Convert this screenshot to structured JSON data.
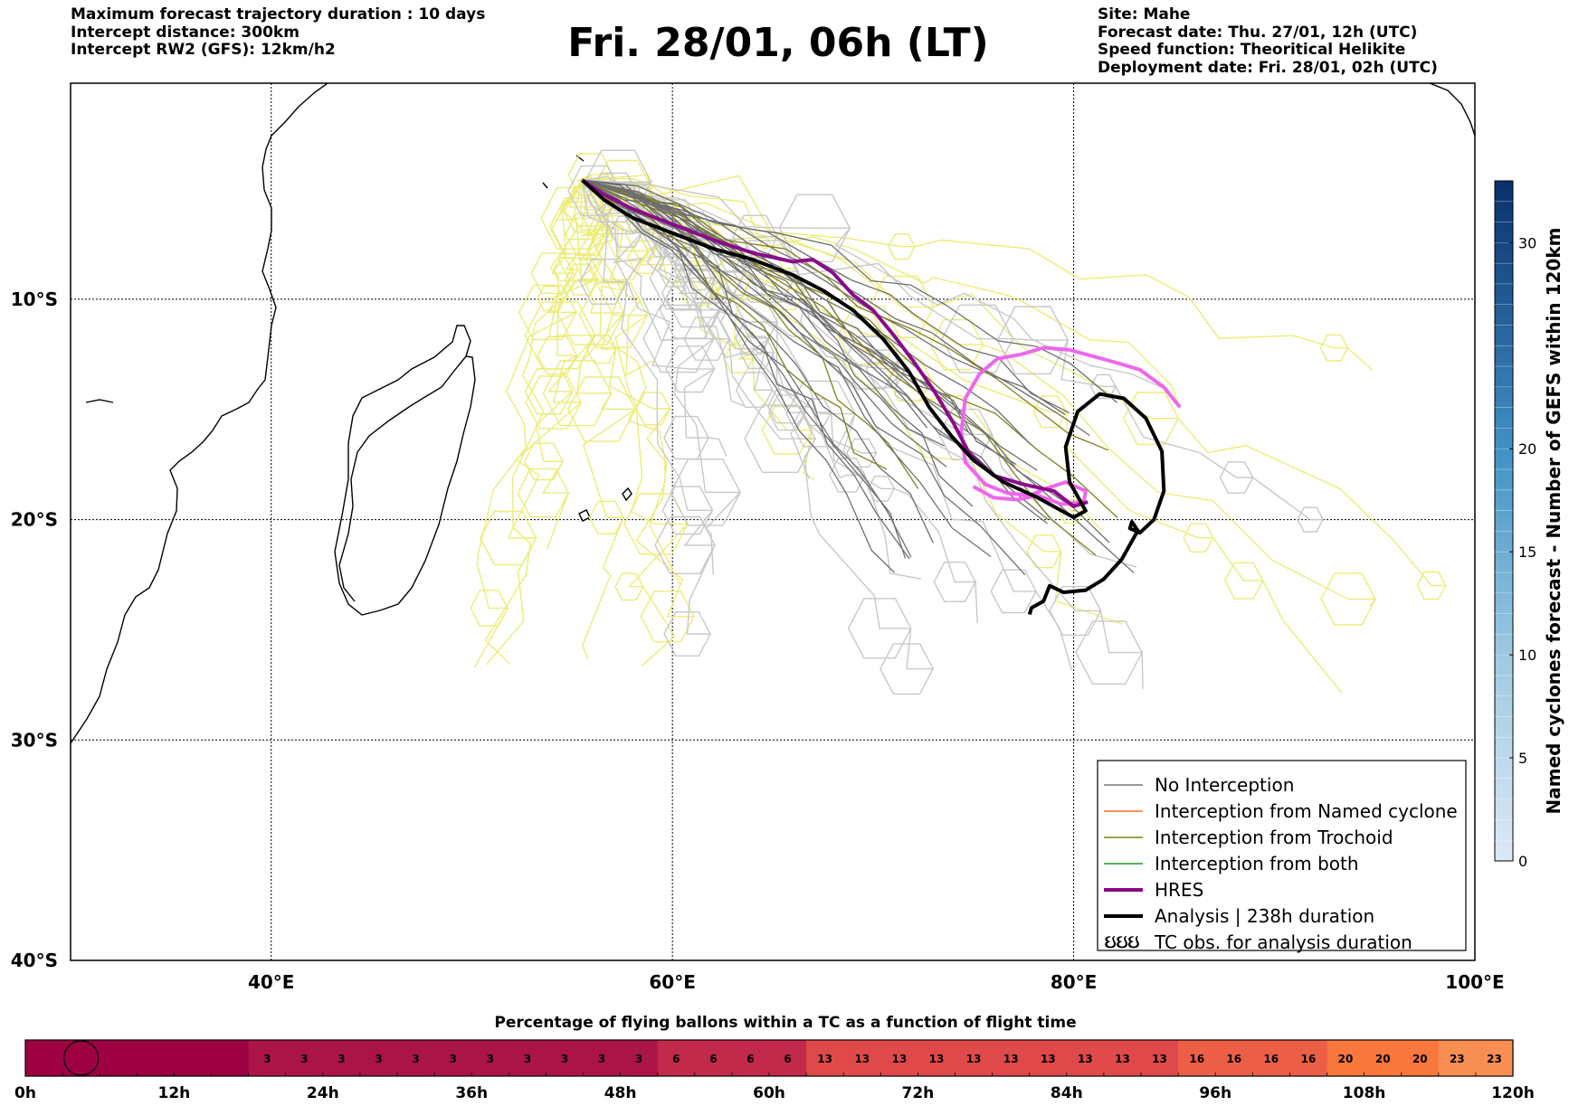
{
  "header": {
    "left_lines": [
      "Maximum forecast trajectory duration : 10 days",
      "Intercept distance: 300km",
      "Intercept RW2 (GFS):  12km/h2"
    ],
    "title": "Fri. 28/01, 06h (LT)",
    "right_lines": [
      "Site: Mahe",
      "Forecast date: Thu. 27/01, 12h (UTC)",
      "Speed function: Theoritical Helikite",
      "Deployment date: Fri. 28/01, 02h (UTC)"
    ]
  },
  "chart_data": {
    "type": "map-trajectories",
    "lon_range": [
      30,
      100
    ],
    "lat_range": [
      -40,
      -0.2
    ],
    "lon_ticks": [
      40,
      60,
      80,
      100
    ],
    "lon_tick_labels": [
      "40°E",
      "60°E",
      "80°E",
      "100°E"
    ],
    "lat_ticks": [
      -10,
      -20,
      -30,
      -40
    ],
    "lat_tick_labels": [
      "10°S",
      "20°S",
      "30°S",
      "40°S"
    ],
    "grid": true,
    "start_point": {
      "lon": 55.5,
      "lat": -4.6
    },
    "legend_position": "lower-right",
    "legend": [
      {
        "label": "No Interception",
        "color": "#7a7a7a",
        "width": 1.5
      },
      {
        "label": "Interception from Named cyclone",
        "color": "#ff6a2a",
        "width": 1.5
      },
      {
        "label": "Interception from Trochoid",
        "color": "#80801a",
        "width": 1.5
      },
      {
        "label": "Interception from both",
        "color": "#229922",
        "width": 1.5
      },
      {
        "label": "HRES",
        "color": "#8b0a8b",
        "width": 4
      },
      {
        "label": "Analysis | 238h duration",
        "color": "#000000",
        "width": 4
      },
      {
        "label": "TC obs. for analysis duration",
        "color": "#000000",
        "width": 0,
        "symbol": "ઇઇઇ"
      }
    ],
    "hres": [
      [
        55.5,
        -4.6
      ],
      [
        56.5,
        -5.2
      ],
      [
        58,
        -5.9
      ],
      [
        60,
        -6.6
      ],
      [
        62,
        -7.3
      ],
      [
        64,
        -7.9
      ],
      [
        66,
        -8.3
      ],
      [
        67,
        -8.2
      ],
      [
        68,
        -8.8
      ],
      [
        69,
        -9.8
      ],
      [
        70,
        -10.5
      ],
      [
        71,
        -11.6
      ],
      [
        72,
        -12.8
      ],
      [
        73,
        -14.1
      ],
      [
        74,
        -15.6
      ],
      [
        74.8,
        -17.0
      ],
      [
        76,
        -18
      ],
      [
        77.5,
        -18.4
      ],
      [
        79,
        -18.7
      ],
      [
        80,
        -19.4
      ],
      [
        80.7,
        -19.2
      ]
    ],
    "analysis": [
      [
        55.5,
        -4.6
      ],
      [
        56.6,
        -5.5
      ],
      [
        58,
        -6.3
      ],
      [
        60,
        -7.0
      ],
      [
        62,
        -7.7
      ],
      [
        64,
        -8.2
      ],
      [
        66,
        -8.9
      ],
      [
        67.5,
        -9.6
      ],
      [
        69,
        -10.5
      ],
      [
        70.5,
        -11.8
      ],
      [
        71.8,
        -13.3
      ],
      [
        72.8,
        -14.9
      ],
      [
        73.9,
        -16.2
      ],
      [
        75,
        -17.3
      ],
      [
        76.5,
        -18.3
      ],
      [
        78.2,
        -19.0
      ],
      [
        80,
        -19.9
      ],
      [
        80.6,
        -19.6
      ],
      [
        79.8,
        -18.3
      ],
      [
        79.6,
        -16.7
      ],
      [
        80.2,
        -15.1
      ],
      [
        81.3,
        -14.3
      ],
      [
        82.5,
        -14.5
      ],
      [
        83.6,
        -15.4
      ],
      [
        84.4,
        -16.9
      ],
      [
        84.5,
        -18.7
      ],
      [
        84,
        -20.0
      ],
      [
        83.3,
        -20.6
      ],
      [
        82.8,
        -20.4
      ],
      [
        82.9,
        -20.1
      ],
      [
        83.2,
        -20.5
      ],
      [
        82.4,
        -21.8
      ],
      [
        81.5,
        -22.7
      ],
      [
        80.6,
        -23.2
      ],
      [
        79.5,
        -23.3
      ],
      [
        78.8,
        -23.0
      ],
      [
        78.5,
        -23.7
      ],
      [
        77.9,
        -24.0
      ],
      [
        77.8,
        -24.3
      ]
    ],
    "pink_track": [
      [
        85.3,
        -14.9
      ],
      [
        84.5,
        -14.0
      ],
      [
        83.3,
        -13.2
      ],
      [
        82.2,
        -12.9
      ],
      [
        81,
        -12.6
      ],
      [
        79.8,
        -12.3
      ],
      [
        78.5,
        -12.2
      ],
      [
        77.4,
        -12.5
      ],
      [
        76.2,
        -12.7
      ],
      [
        75.3,
        -13.4
      ],
      [
        74.6,
        -14.5
      ],
      [
        74.4,
        -16.0
      ],
      [
        74.6,
        -17.4
      ],
      [
        75.6,
        -18.4
      ],
      [
        76.7,
        -18.8
      ],
      [
        77.8,
        -18.9
      ],
      [
        78.6,
        -18.6
      ],
      [
        79.6,
        -18.3
      ],
      [
        80.6,
        -18.7
      ],
      [
        80.5,
        -19.2
      ],
      [
        79.4,
        -19.3
      ],
      [
        78.2,
        -18.9
      ],
      [
        77.2,
        -19.1
      ],
      [
        76,
        -19.0
      ],
      [
        75,
        -18.5
      ]
    ]
  },
  "colorbar": {
    "title": "Named cyclones forecast - Number of GEFS within 120km",
    "min": 0,
    "max": 33,
    "ticks": [
      0,
      5,
      10,
      15,
      20,
      30
    ],
    "tick_labels": [
      "0",
      "5",
      "10",
      "15",
      "20",
      "30"
    ]
  },
  "timeline": {
    "title": "Percentage of flying ballons within a TC as a function of flight time",
    "hour_ticks": [
      0,
      12,
      24,
      36,
      48,
      60,
      72,
      84,
      96,
      108,
      120
    ],
    "hour_labels": [
      "0h",
      "12h",
      "24h",
      "36h",
      "48h",
      "60h",
      "72h",
      "84h",
      "96h",
      "108h",
      "120h"
    ],
    "values": [
      0,
      0,
      0,
      0,
      0,
      0,
      3,
      3,
      3,
      3,
      3,
      3,
      3,
      3,
      3,
      3,
      3,
      6,
      6,
      6,
      6,
      13,
      13,
      13,
      13,
      13,
      13,
      13,
      13,
      13,
      13,
      16,
      16,
      16,
      16,
      20,
      20,
      20,
      23,
      23
    ],
    "value_labels": [
      "",
      "",
      "",
      "",
      "",
      "",
      "3",
      "3",
      "3",
      "3",
      "3",
      "3",
      "3",
      "3",
      "3",
      "3",
      "3",
      "6",
      "6",
      "6",
      "6",
      "13",
      "13",
      "13",
      "13",
      "13",
      "13",
      "13",
      "13",
      "13",
      "13",
      "16",
      "16",
      "16",
      "16",
      "20",
      "20",
      "20",
      "23",
      "23"
    ],
    "colors": {
      "0": "#9e0142",
      "3": "#ab1446",
      "6": "#c2294a",
      "13": "#e0494a",
      "16": "#ec5f46",
      "20": "#f7773c",
      "23": "#f98e52"
    },
    "marker_hour": 4.5
  }
}
